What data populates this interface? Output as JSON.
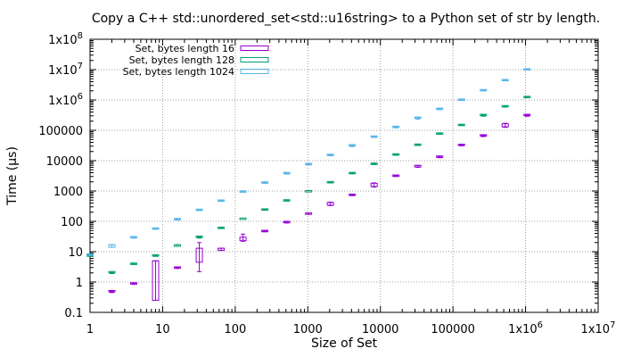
{
  "chart_data": {
    "type": "candlestick",
    "title": "Copy a C++ std::unordered_set<std::u16string> to a Python set of str by length.",
    "xlabel": "Size of Set",
    "ylabel": "Time (µs)",
    "x_scale": "log",
    "y_scale": "log",
    "xlim": [
      1,
      10000000
    ],
    "ylim": [
      0.1,
      100000000
    ],
    "grid": true,
    "legend_position": "top-left",
    "x_ticks": [
      {
        "value": 1,
        "label": "1"
      },
      {
        "value": 10,
        "label": "10"
      },
      {
        "value": 100,
        "label": "100"
      },
      {
        "value": 1000,
        "label": "1000"
      },
      {
        "value": 10000,
        "label": "10000"
      },
      {
        "value": 100000,
        "label": "100000"
      },
      {
        "value": 1000000,
        "label": "1x10^6"
      },
      {
        "value": 10000000,
        "label": "1x10^7"
      }
    ],
    "y_ticks": [
      {
        "value": 0.1,
        "label": "0.1"
      },
      {
        "value": 1,
        "label": "1"
      },
      {
        "value": 10,
        "label": "10"
      },
      {
        "value": 100,
        "label": "100"
      },
      {
        "value": 1000,
        "label": "1000"
      },
      {
        "value": 10000,
        "label": "10000"
      },
      {
        "value": 100000,
        "label": "100000"
      },
      {
        "value": 1000000,
        "label": "1x10^6"
      },
      {
        "value": 10000000,
        "label": "1x10^7"
      },
      {
        "value": 100000000,
        "label": "1x10^8"
      }
    ],
    "series": [
      {
        "name": "Set, bytes length 16",
        "color": "#9400d3",
        "points": [
          {
            "x": 2,
            "low": 0.45,
            "q1": 0.45,
            "q3": 0.5,
            "high": 0.5
          },
          {
            "x": 4,
            "low": 0.85,
            "q1": 0.85,
            "q3": 0.9,
            "high": 0.9
          },
          {
            "x": 8,
            "low": 0.25,
            "q1": 0.25,
            "q3": 5,
            "high": 5
          },
          {
            "x": 16,
            "low": 2.8,
            "q1": 2.8,
            "q3": 3.0,
            "high": 3.0
          },
          {
            "x": 32,
            "low": 2.2,
            "q1": 4.5,
            "q3": 13,
            "high": 20
          },
          {
            "x": 64,
            "low": 11,
            "q1": 11,
            "q3": 13,
            "high": 13
          },
          {
            "x": 128,
            "low": 22,
            "q1": 23,
            "q3": 30,
            "high": 38
          },
          {
            "x": 256,
            "low": 45,
            "q1": 45,
            "q3": 48,
            "high": 48
          },
          {
            "x": 512,
            "low": 88,
            "q1": 88,
            "q3": 95,
            "high": 95
          },
          {
            "x": 1024,
            "low": 170,
            "q1": 170,
            "q3": 190,
            "high": 190
          },
          {
            "x": 2048,
            "low": 330,
            "q1": 340,
            "q3": 420,
            "high": 430
          },
          {
            "x": 4096,
            "low": 700,
            "q1": 700,
            "q3": 750,
            "high": 750
          },
          {
            "x": 8192,
            "low": 1350,
            "q1": 1400,
            "q3": 1800,
            "high": 1850
          },
          {
            "x": 16384,
            "low": 3000,
            "q1": 3000,
            "q3": 3200,
            "high": 3200
          },
          {
            "x": 32768,
            "low": 6000,
            "q1": 6200,
            "q3": 7000,
            "high": 7000
          },
          {
            "x": 65536,
            "low": 12500,
            "q1": 12500,
            "q3": 13500,
            "high": 13500
          },
          {
            "x": 131072,
            "low": 31000,
            "q1": 31000,
            "q3": 33000,
            "high": 33000
          },
          {
            "x": 262144,
            "low": 62000,
            "q1": 62000,
            "q3": 68000,
            "high": 68000
          },
          {
            "x": 524288,
            "low": 125000,
            "q1": 130000,
            "q3": 165000,
            "high": 170000
          },
          {
            "x": 1048576,
            "low": 290000,
            "q1": 290000,
            "q3": 320000,
            "high": 320000
          }
        ]
      },
      {
        "name": "Set, bytes length 128",
        "color": "#009e73",
        "points": [
          {
            "x": 1,
            "low": 7,
            "q1": 7,
            "q3": 7.5,
            "high": 7.5
          },
          {
            "x": 2,
            "low": 1.9,
            "q1": 1.9,
            "q3": 2.1,
            "high": 2.1
          },
          {
            "x": 4,
            "low": 3.8,
            "q1": 3.8,
            "q3": 4.0,
            "high": 4.0
          },
          {
            "x": 8,
            "low": 7,
            "q1": 7,
            "q3": 7.5,
            "high": 7.5
          },
          {
            "x": 16,
            "low": 15,
            "q1": 15,
            "q3": 17,
            "high": 17
          },
          {
            "x": 32,
            "low": 28,
            "q1": 28,
            "q3": 31,
            "high": 31
          },
          {
            "x": 64,
            "low": 58,
            "q1": 58,
            "q3": 61,
            "high": 61
          },
          {
            "x": 128,
            "low": 118,
            "q1": 118,
            "q3": 122,
            "high": 122
          },
          {
            "x": 256,
            "low": 235,
            "q1": 235,
            "q3": 245,
            "high": 245
          },
          {
            "x": 512,
            "low": 470,
            "q1": 470,
            "q3": 490,
            "high": 490
          },
          {
            "x": 1024,
            "low": 950,
            "q1": 950,
            "q3": 980,
            "high": 980
          },
          {
            "x": 2048,
            "low": 1850,
            "q1": 1850,
            "q3": 1950,
            "high": 1950
          },
          {
            "x": 4096,
            "low": 3700,
            "q1": 3700,
            "q3": 3900,
            "high": 3900
          },
          {
            "x": 8192,
            "low": 7500,
            "q1": 7500,
            "q3": 7900,
            "high": 7900
          },
          {
            "x": 16384,
            "low": 15000,
            "q1": 15000,
            "q3": 16000,
            "high": 16000
          },
          {
            "x": 32768,
            "low": 32000,
            "q1": 32000,
            "q3": 33500,
            "high": 33500
          },
          {
            "x": 65536,
            "low": 75000,
            "q1": 75000,
            "q3": 78000,
            "high": 78000
          },
          {
            "x": 131072,
            "low": 145000,
            "q1": 145000,
            "q3": 150000,
            "high": 150000
          },
          {
            "x": 262144,
            "low": 290000,
            "q1": 290000,
            "q3": 320000,
            "high": 320000
          },
          {
            "x": 524288,
            "low": 580000,
            "q1": 590000,
            "q3": 620000,
            "high": 630000
          },
          {
            "x": 1048576,
            "low": 1200000,
            "q1": 1200000,
            "q3": 1250000,
            "high": 1250000
          }
        ]
      },
      {
        "name": "Set, bytes length 1024",
        "color": "#56b4e9",
        "points": [
          {
            "x": 1,
            "low": 7.5,
            "q1": 7.5,
            "q3": 8.5,
            "high": 8.5
          },
          {
            "x": 2,
            "low": 14,
            "q1": 14,
            "q3": 17,
            "high": 17
          },
          {
            "x": 4,
            "low": 28,
            "q1": 28,
            "q3": 30,
            "high": 30
          },
          {
            "x": 8,
            "low": 55,
            "q1": 55,
            "q3": 58,
            "high": 58
          },
          {
            "x": 16,
            "low": 110,
            "q1": 110,
            "q3": 118,
            "high": 118
          },
          {
            "x": 32,
            "low": 225,
            "q1": 225,
            "q3": 240,
            "high": 240
          },
          {
            "x": 64,
            "low": 460,
            "q1": 460,
            "q3": 480,
            "high": 480
          },
          {
            "x": 128,
            "low": 920,
            "q1": 920,
            "q3": 960,
            "high": 960
          },
          {
            "x": 256,
            "low": 1800,
            "q1": 1800,
            "q3": 1900,
            "high": 1900
          },
          {
            "x": 512,
            "low": 3600,
            "q1": 3600,
            "q3": 3900,
            "high": 3900
          },
          {
            "x": 1024,
            "low": 7300,
            "q1": 7300,
            "q3": 7700,
            "high": 7700
          },
          {
            "x": 2048,
            "low": 14500,
            "q1": 14500,
            "q3": 15500,
            "high": 15500
          },
          {
            "x": 4096,
            "low": 29000,
            "q1": 29000,
            "q3": 32000,
            "high": 32000
          },
          {
            "x": 8192,
            "low": 59000,
            "q1": 59000,
            "q3": 62000,
            "high": 62000
          },
          {
            "x": 16384,
            "low": 120000,
            "q1": 120000,
            "q3": 130000,
            "high": 130000
          },
          {
            "x": 32768,
            "low": 230000,
            "q1": 235000,
            "q3": 260000,
            "high": 265000
          },
          {
            "x": 65536,
            "low": 480000,
            "q1": 480000,
            "q3": 510000,
            "high": 510000
          },
          {
            "x": 131072,
            "low": 980000,
            "q1": 980000,
            "q3": 1020000,
            "high": 1020000
          },
          {
            "x": 262144,
            "low": 2000000,
            "q1": 2000000,
            "q3": 2100000,
            "high": 2100000
          },
          {
            "x": 524288,
            "low": 4300000,
            "q1": 4300000,
            "q3": 4500000,
            "high": 4500000
          },
          {
            "x": 1048576,
            "low": 9800000,
            "q1": 9800000,
            "q3": 10200000,
            "high": 10200000
          }
        ]
      }
    ]
  }
}
